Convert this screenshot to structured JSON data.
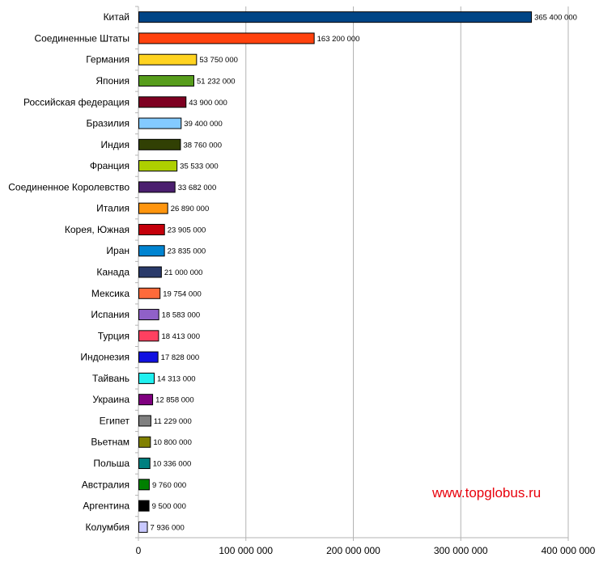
{
  "watermark": "www.topglobus.ru",
  "chart_data": {
    "type": "bar",
    "orientation": "horizontal",
    "title": "",
    "xlabel": "",
    "ylabel": "",
    "xlim": [
      0,
      400000000
    ],
    "x_ticks": [
      0,
      100000000,
      200000000,
      300000000,
      400000000
    ],
    "x_tick_labels": [
      "0",
      "100 000 000",
      "200 000 000",
      "300 000 000",
      "400 000 000"
    ],
    "grid": "vertical",
    "categories": [
      "Китай",
      "Соединенные Штаты",
      "Германия",
      "Япония",
      "Российская федерация",
      "Бразилия",
      "Индия",
      "Франция",
      "Соединенное Королевство",
      "Италия",
      "Корея, Южная",
      "Иран",
      "Канада",
      "Мексика",
      "Испания",
      "Турция",
      "Индонезия",
      "Тайвань",
      "Украина",
      "Египет",
      "Вьетнам",
      "Польша",
      "Австралия",
      "Аргентина",
      "Колумбия"
    ],
    "values": [
      365400000,
      163200000,
      53750000,
      51232000,
      43900000,
      39400000,
      38760000,
      35533000,
      33682000,
      26890000,
      23905000,
      23835000,
      21000000,
      19754000,
      18583000,
      18413000,
      17828000,
      14313000,
      12858000,
      11229000,
      10800000,
      10336000,
      9760000,
      9500000,
      7936000
    ],
    "value_labels": [
      "365 400 000",
      "163 200 000",
      "53 750 000",
      "51 232 000",
      "43 900 000",
      "39 400 000",
      "38 760 000",
      "35 533 000",
      "33 682 000",
      "26 890 000",
      "23 905 000",
      "23 835 000",
      "21 000 000",
      "19 754 000",
      "18 583 000",
      "18 413 000",
      "17 828 000",
      "14 313 000",
      "12 858 000",
      "11 229 000",
      "10 800 000",
      "10 336 000",
      "9 760 000",
      "9 500 000",
      "7 936 000"
    ],
    "colors": [
      "#004586",
      "#ff420e",
      "#ffd320",
      "#579d1c",
      "#7e0021",
      "#83caff",
      "#314004",
      "#aecf00",
      "#4b1f6f",
      "#ff950e",
      "#c5000b",
      "#0084d1",
      "#2a3a6a",
      "#ff6a3a",
      "#9060c8",
      "#ff4060",
      "#1010e0",
      "#20f0f0",
      "#800080",
      "#808080",
      "#808000",
      "#008080",
      "#008000",
      "#000000",
      "#c8c8ff"
    ]
  }
}
